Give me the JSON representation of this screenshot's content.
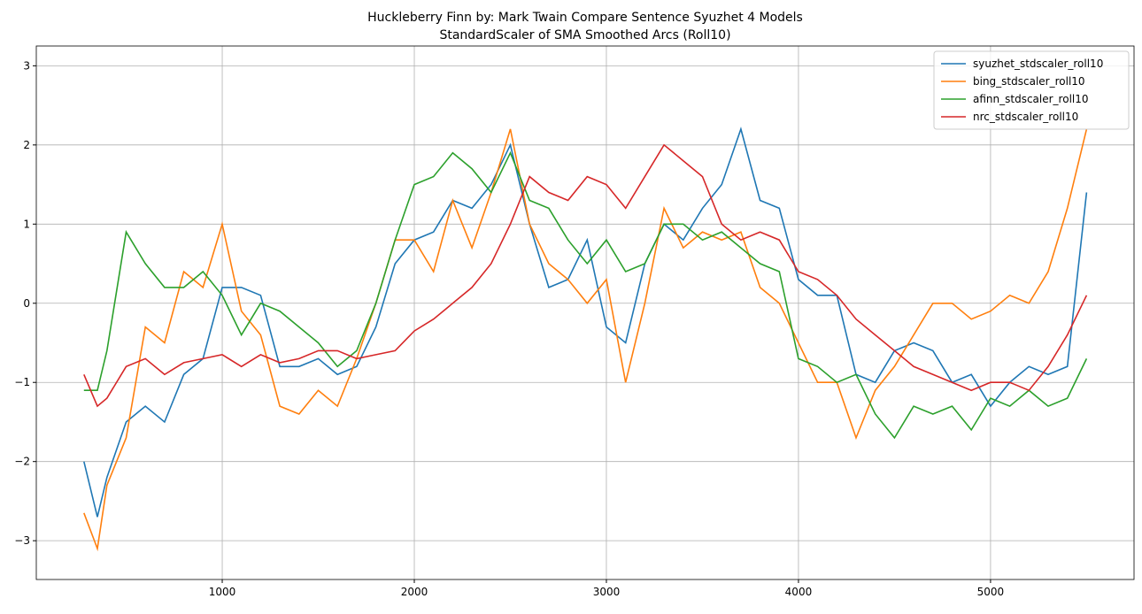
{
  "chart_data": {
    "type": "line",
    "title": "Huckleberry Finn by: Mark Twain Compare Sentence Syuzhet 4 Models",
    "subtitle": "StandardScaler of SMA Smoothed Arcs (Roll10)",
    "x": [
      280,
      350,
      400,
      500,
      600,
      700,
      800,
      900,
      1000,
      1100,
      1200,
      1300,
      1400,
      1500,
      1600,
      1700,
      1800,
      1900,
      2000,
      2100,
      2200,
      2300,
      2400,
      2500,
      2600,
      2700,
      2800,
      2900,
      3000,
      3100,
      3200,
      3300,
      3400,
      3500,
      3600,
      3700,
      3800,
      3900,
      4000,
      4100,
      4200,
      4300,
      4400,
      4500,
      4600,
      4700,
      4800,
      4900,
      5000,
      5100,
      5200,
      5300,
      5400,
      5500
    ],
    "series": [
      {
        "name": "syuzhet_stdscaler_roll10",
        "color": "#1f77b4",
        "values": [
          -2.0,
          -2.7,
          -2.2,
          -1.5,
          -1.3,
          -1.5,
          -0.9,
          -0.7,
          0.2,
          0.2,
          0.1,
          -0.8,
          -0.8,
          -0.7,
          -0.9,
          -0.8,
          -0.3,
          0.5,
          0.8,
          0.9,
          1.3,
          1.2,
          1.5,
          2.0,
          1.0,
          0.2,
          0.3,
          0.8,
          -0.3,
          -0.5,
          0.5,
          1.0,
          0.8,
          1.2,
          1.5,
          2.2,
          1.3,
          1.2,
          0.3,
          0.1,
          0.1,
          -0.9,
          -1.0,
          -0.6,
          -0.5,
          -0.6,
          -1.0,
          -0.9,
          -1.3,
          -1.0,
          -0.8,
          -0.9,
          -0.8,
          1.4
        ]
      },
      {
        "name": "bing_stdscaler_roll10",
        "color": "#ff7f0e",
        "values": [
          -2.65,
          -3.1,
          -2.3,
          -1.7,
          -0.3,
          -0.5,
          0.4,
          0.2,
          1.0,
          -0.1,
          -0.4,
          -1.3,
          -1.4,
          -1.1,
          -1.3,
          -0.7,
          0.0,
          0.8,
          0.8,
          0.4,
          1.3,
          0.7,
          1.4,
          2.2,
          1.0,
          0.5,
          0.3,
          0.0,
          0.3,
          -1.0,
          0.0,
          1.2,
          0.7,
          0.9,
          0.8,
          0.9,
          0.2,
          0.0,
          -0.5,
          -1.0,
          -1.0,
          -1.7,
          -1.1,
          -0.8,
          -0.4,
          0.0,
          0.0,
          -0.2,
          -0.1,
          0.1,
          0.0,
          0.4,
          1.2,
          2.2
        ]
      },
      {
        "name": "afinn_stdscaler_roll10",
        "color": "#2ca02c",
        "values": [
          -1.1,
          -1.1,
          -0.6,
          0.9,
          0.5,
          0.2,
          0.2,
          0.4,
          0.1,
          -0.4,
          0.0,
          -0.1,
          -0.3,
          -0.5,
          -0.8,
          -0.6,
          0.0,
          0.8,
          1.5,
          1.6,
          1.9,
          1.7,
          1.4,
          1.9,
          1.3,
          1.2,
          0.8,
          0.5,
          0.8,
          0.4,
          0.5,
          1.0,
          1.0,
          0.8,
          0.9,
          0.7,
          0.5,
          0.4,
          -0.7,
          -0.8,
          -1.0,
          -0.9,
          -1.4,
          -1.7,
          -1.3,
          -1.4,
          -1.3,
          -1.6,
          -1.2,
          -1.3,
          -1.1,
          -1.3,
          -1.2,
          -0.7
        ]
      },
      {
        "name": "nrc_stdscaler_roll10",
        "color": "#d62728",
        "values": [
          -0.9,
          -1.3,
          -1.2,
          -0.8,
          -0.7,
          -0.9,
          -0.75,
          -0.7,
          -0.65,
          -0.8,
          -0.65,
          -0.75,
          -0.7,
          -0.6,
          -0.6,
          -0.7,
          -0.65,
          -0.6,
          -0.35,
          -0.2,
          0.0,
          0.2,
          0.5,
          1.0,
          1.6,
          1.4,
          1.3,
          1.6,
          1.5,
          1.2,
          1.6,
          2.0,
          1.8,
          1.6,
          1.0,
          0.8,
          0.9,
          0.8,
          0.4,
          0.3,
          0.1,
          -0.2,
          -0.4,
          -0.6,
          -0.8,
          -0.9,
          -1.0,
          -1.1,
          -1.0,
          -1.0,
          -1.1,
          -0.8,
          -0.4,
          0.1
        ]
      }
    ],
    "xlim": [
      32,
      5747
    ],
    "ylim": [
      -3.49,
      3.25
    ],
    "xticks": [
      1000,
      2000,
      3000,
      4000,
      5000
    ],
    "yticks": [
      {
        "value": -3,
        "label": "−3"
      },
      {
        "value": -2,
        "label": "−2"
      },
      {
        "value": -1,
        "label": "−1"
      },
      0,
      1,
      2,
      3
    ],
    "grid": true,
    "legend": "upper right"
  }
}
